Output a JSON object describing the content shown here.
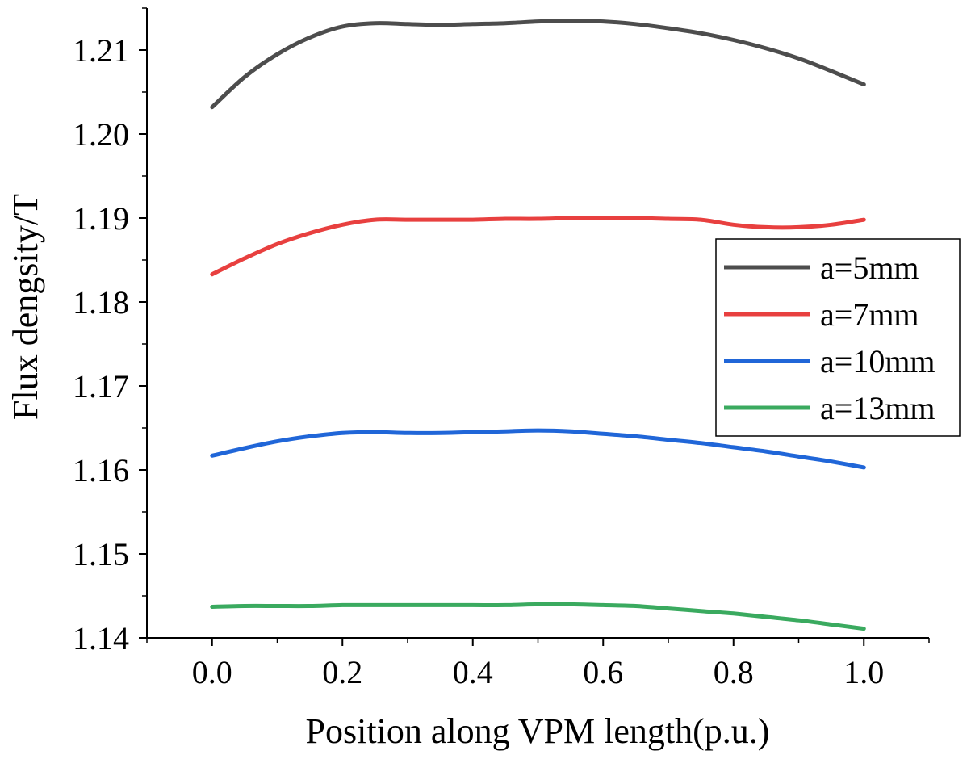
{
  "chart_data": {
    "type": "line",
    "title": "",
    "xlabel": "Position along VPM length(p.u.)",
    "ylabel": "Flux dengsity/T",
    "xlim": [
      -0.1,
      1.1
    ],
    "ylim": [
      1.14,
      1.215
    ],
    "xticks": [
      0.0,
      0.2,
      0.4,
      0.6,
      0.8,
      1.0
    ],
    "xtick_labels": [
      "0.0",
      "0.2",
      "0.4",
      "0.6",
      "0.8",
      "1.0"
    ],
    "yticks": [
      1.14,
      1.15,
      1.16,
      1.17,
      1.18,
      1.19,
      1.2,
      1.21
    ],
    "ytick_labels": [
      "1.14",
      "1.15",
      "1.16",
      "1.17",
      "1.18",
      "1.19",
      "1.20",
      "1.21"
    ],
    "legend_position": "center-right",
    "series": [
      {
        "name": "a=5mm",
        "color": "#4d4d4d",
        "x": [
          0.0,
          0.05,
          0.1,
          0.15,
          0.2,
          0.25,
          0.3,
          0.35,
          0.4,
          0.45,
          0.5,
          0.55,
          0.6,
          0.65,
          0.7,
          0.75,
          0.8,
          0.85,
          0.9,
          0.95,
          1.0
        ],
        "y": [
          1.2032,
          1.2068,
          1.2095,
          1.2115,
          1.2128,
          1.2132,
          1.2131,
          1.213,
          1.2131,
          1.2132,
          1.2134,
          1.2135,
          1.2134,
          1.2131,
          1.2126,
          1.212,
          1.2112,
          1.2102,
          1.209,
          1.2075,
          1.2059
        ]
      },
      {
        "name": "a=7mm",
        "color": "#e8403f",
        "x": [
          0.0,
          0.05,
          0.1,
          0.15,
          0.2,
          0.25,
          0.3,
          0.35,
          0.4,
          0.45,
          0.5,
          0.55,
          0.6,
          0.65,
          0.7,
          0.75,
          0.8,
          0.85,
          0.9,
          0.95,
          1.0
        ],
        "y": [
          1.1833,
          1.1852,
          1.1869,
          1.1882,
          1.1892,
          1.1898,
          1.1898,
          1.1898,
          1.1898,
          1.1899,
          1.1899,
          1.19,
          1.19,
          1.19,
          1.1899,
          1.1898,
          1.1892,
          1.1889,
          1.1889,
          1.1892,
          1.1898
        ]
      },
      {
        "name": "a=10mm",
        "color": "#2066d8",
        "x": [
          0.0,
          0.05,
          0.1,
          0.15,
          0.2,
          0.25,
          0.3,
          0.35,
          0.4,
          0.45,
          0.5,
          0.55,
          0.6,
          0.65,
          0.7,
          0.75,
          0.8,
          0.85,
          0.9,
          0.95,
          1.0
        ],
        "y": [
          1.1617,
          1.1626,
          1.1634,
          1.164,
          1.1644,
          1.1645,
          1.1644,
          1.1644,
          1.1645,
          1.1646,
          1.1647,
          1.1646,
          1.1643,
          1.164,
          1.1636,
          1.1632,
          1.1627,
          1.1622,
          1.1616,
          1.161,
          1.1603
        ]
      },
      {
        "name": "a=13mm",
        "color": "#3aaa5f",
        "x": [
          0.0,
          0.05,
          0.1,
          0.15,
          0.2,
          0.25,
          0.3,
          0.35,
          0.4,
          0.45,
          0.5,
          0.55,
          0.6,
          0.65,
          0.7,
          0.75,
          0.8,
          0.85,
          0.9,
          0.95,
          1.0
        ],
        "y": [
          1.1437,
          1.1438,
          1.1438,
          1.1438,
          1.1439,
          1.1439,
          1.1439,
          1.1439,
          1.1439,
          1.1439,
          1.144,
          1.144,
          1.1439,
          1.1438,
          1.1435,
          1.1432,
          1.1429,
          1.1425,
          1.1421,
          1.1416,
          1.1411
        ]
      }
    ]
  }
}
